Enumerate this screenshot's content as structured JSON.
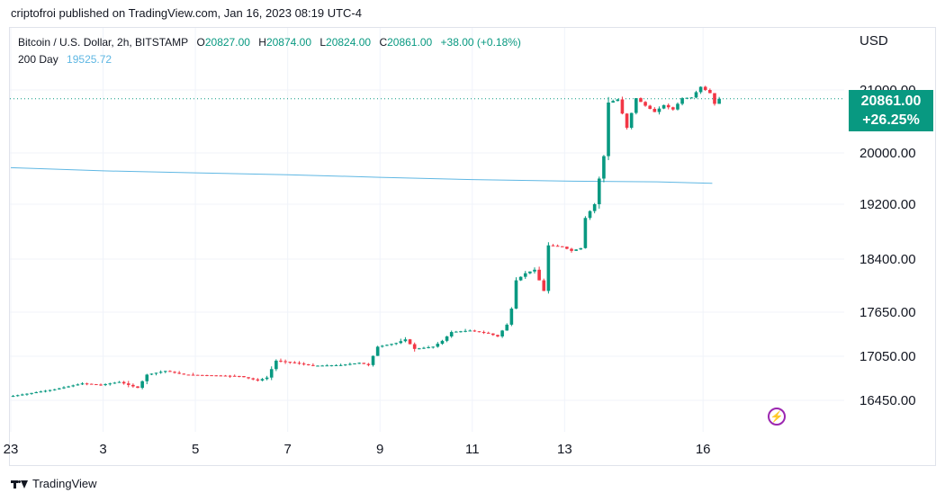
{
  "header": {
    "publisher_text": "criptofroi published on TradingView.com, Jan 16, 2023 08:19 UTC-4"
  },
  "legend": {
    "symbol": "Bitcoin / U.S. Dollar, 2h, BITSTAMP",
    "o_label": "O",
    "o": "20827.00",
    "h_label": "H",
    "h": "20874.00",
    "l_label": "L",
    "l": "20824.00",
    "c_label": "C",
    "c": "20861.00",
    "change": "+38.00 (+0.18%)",
    "ma_label": "200 Day",
    "ma_value": "19525.72"
  },
  "axis": {
    "currency": "USD"
  },
  "price_tag": {
    "price": "20861.00",
    "change_pct": "+26.25%"
  },
  "footer": {
    "brand": "TradingView"
  },
  "colors": {
    "up": "#089981",
    "down": "#f23645",
    "ma": "#5fb7e3",
    "grid": "#f0f3fa",
    "accent": "#9c27b0"
  },
  "icons": {
    "alert": "lightning-icon"
  },
  "chart_data": {
    "type": "candlestick",
    "y_ticks": [
      "21000.00",
      "20000.00",
      "19200.00",
      "18400.00",
      "17650.00",
      "17050.00",
      "16450.00"
    ],
    "y_tick_values": [
      21000,
      20000,
      19200,
      18400,
      17650,
      17050,
      16450
    ],
    "x_ticks": [
      "23",
      "3",
      "5",
      "7",
      "9",
      "11",
      "13",
      "16"
    ],
    "x_tick_positions": [
      0,
      10,
      20,
      30,
      40,
      50,
      60,
      75
    ],
    "x_range": [
      0,
      90
    ],
    "last_close": 20861,
    "ma_series": {
      "name": "200 Day",
      "points": [
        [
          0,
          19770
        ],
        [
          10,
          19720
        ],
        [
          20,
          19690
        ],
        [
          30,
          19660
        ],
        [
          40,
          19620
        ],
        [
          50,
          19585
        ],
        [
          60,
          19560
        ],
        [
          70,
          19550
        ],
        [
          76,
          19526
        ]
      ]
    },
    "anchors": [
      [
        0,
        16500
      ],
      [
        5,
        16600
      ],
      [
        8,
        16680
      ],
      [
        10,
        16660
      ],
      [
        12,
        16700
      ],
      [
        14,
        16620
      ],
      [
        15,
        16800
      ],
      [
        17,
        16850
      ],
      [
        19,
        16800
      ],
      [
        22,
        16790
      ],
      [
        25,
        16780
      ],
      [
        27,
        16720
      ],
      [
        28,
        16760
      ],
      [
        29,
        16990
      ],
      [
        31,
        16960
      ],
      [
        33,
        16920
      ],
      [
        36,
        16930
      ],
      [
        38,
        16960
      ],
      [
        39,
        16930
      ],
      [
        40,
        17180
      ],
      [
        42,
        17230
      ],
      [
        43,
        17280
      ],
      [
        44,
        17150
      ],
      [
        46,
        17180
      ],
      [
        47,
        17260
      ],
      [
        48,
        17380
      ],
      [
        50,
        17400
      ],
      [
        52,
        17360
      ],
      [
        53,
        17320
      ],
      [
        54,
        17480
      ],
      [
        54.5,
        17700
      ],
      [
        55,
        18100
      ],
      [
        56,
        18200
      ],
      [
        57,
        18250
      ],
      [
        58,
        17950
      ],
      [
        58.5,
        18600
      ],
      [
        60,
        18580
      ],
      [
        61,
        18520
      ],
      [
        62,
        18560
      ],
      [
        62.5,
        19000
      ],
      [
        63.5,
        19200
      ],
      [
        64,
        19600
      ],
      [
        64.5,
        19950
      ],
      [
        65,
        20800
      ],
      [
        66,
        20850
      ],
      [
        67,
        20400
      ],
      [
        68,
        20870
      ],
      [
        69,
        20750
      ],
      [
        70,
        20650
      ],
      [
        71,
        20760
      ],
      [
        72,
        20690
      ],
      [
        73,
        20870
      ],
      [
        74,
        20880
      ],
      [
        75,
        21050
      ],
      [
        76,
        20950
      ],
      [
        76.5,
        20780
      ],
      [
        77,
        20861
      ]
    ]
  }
}
